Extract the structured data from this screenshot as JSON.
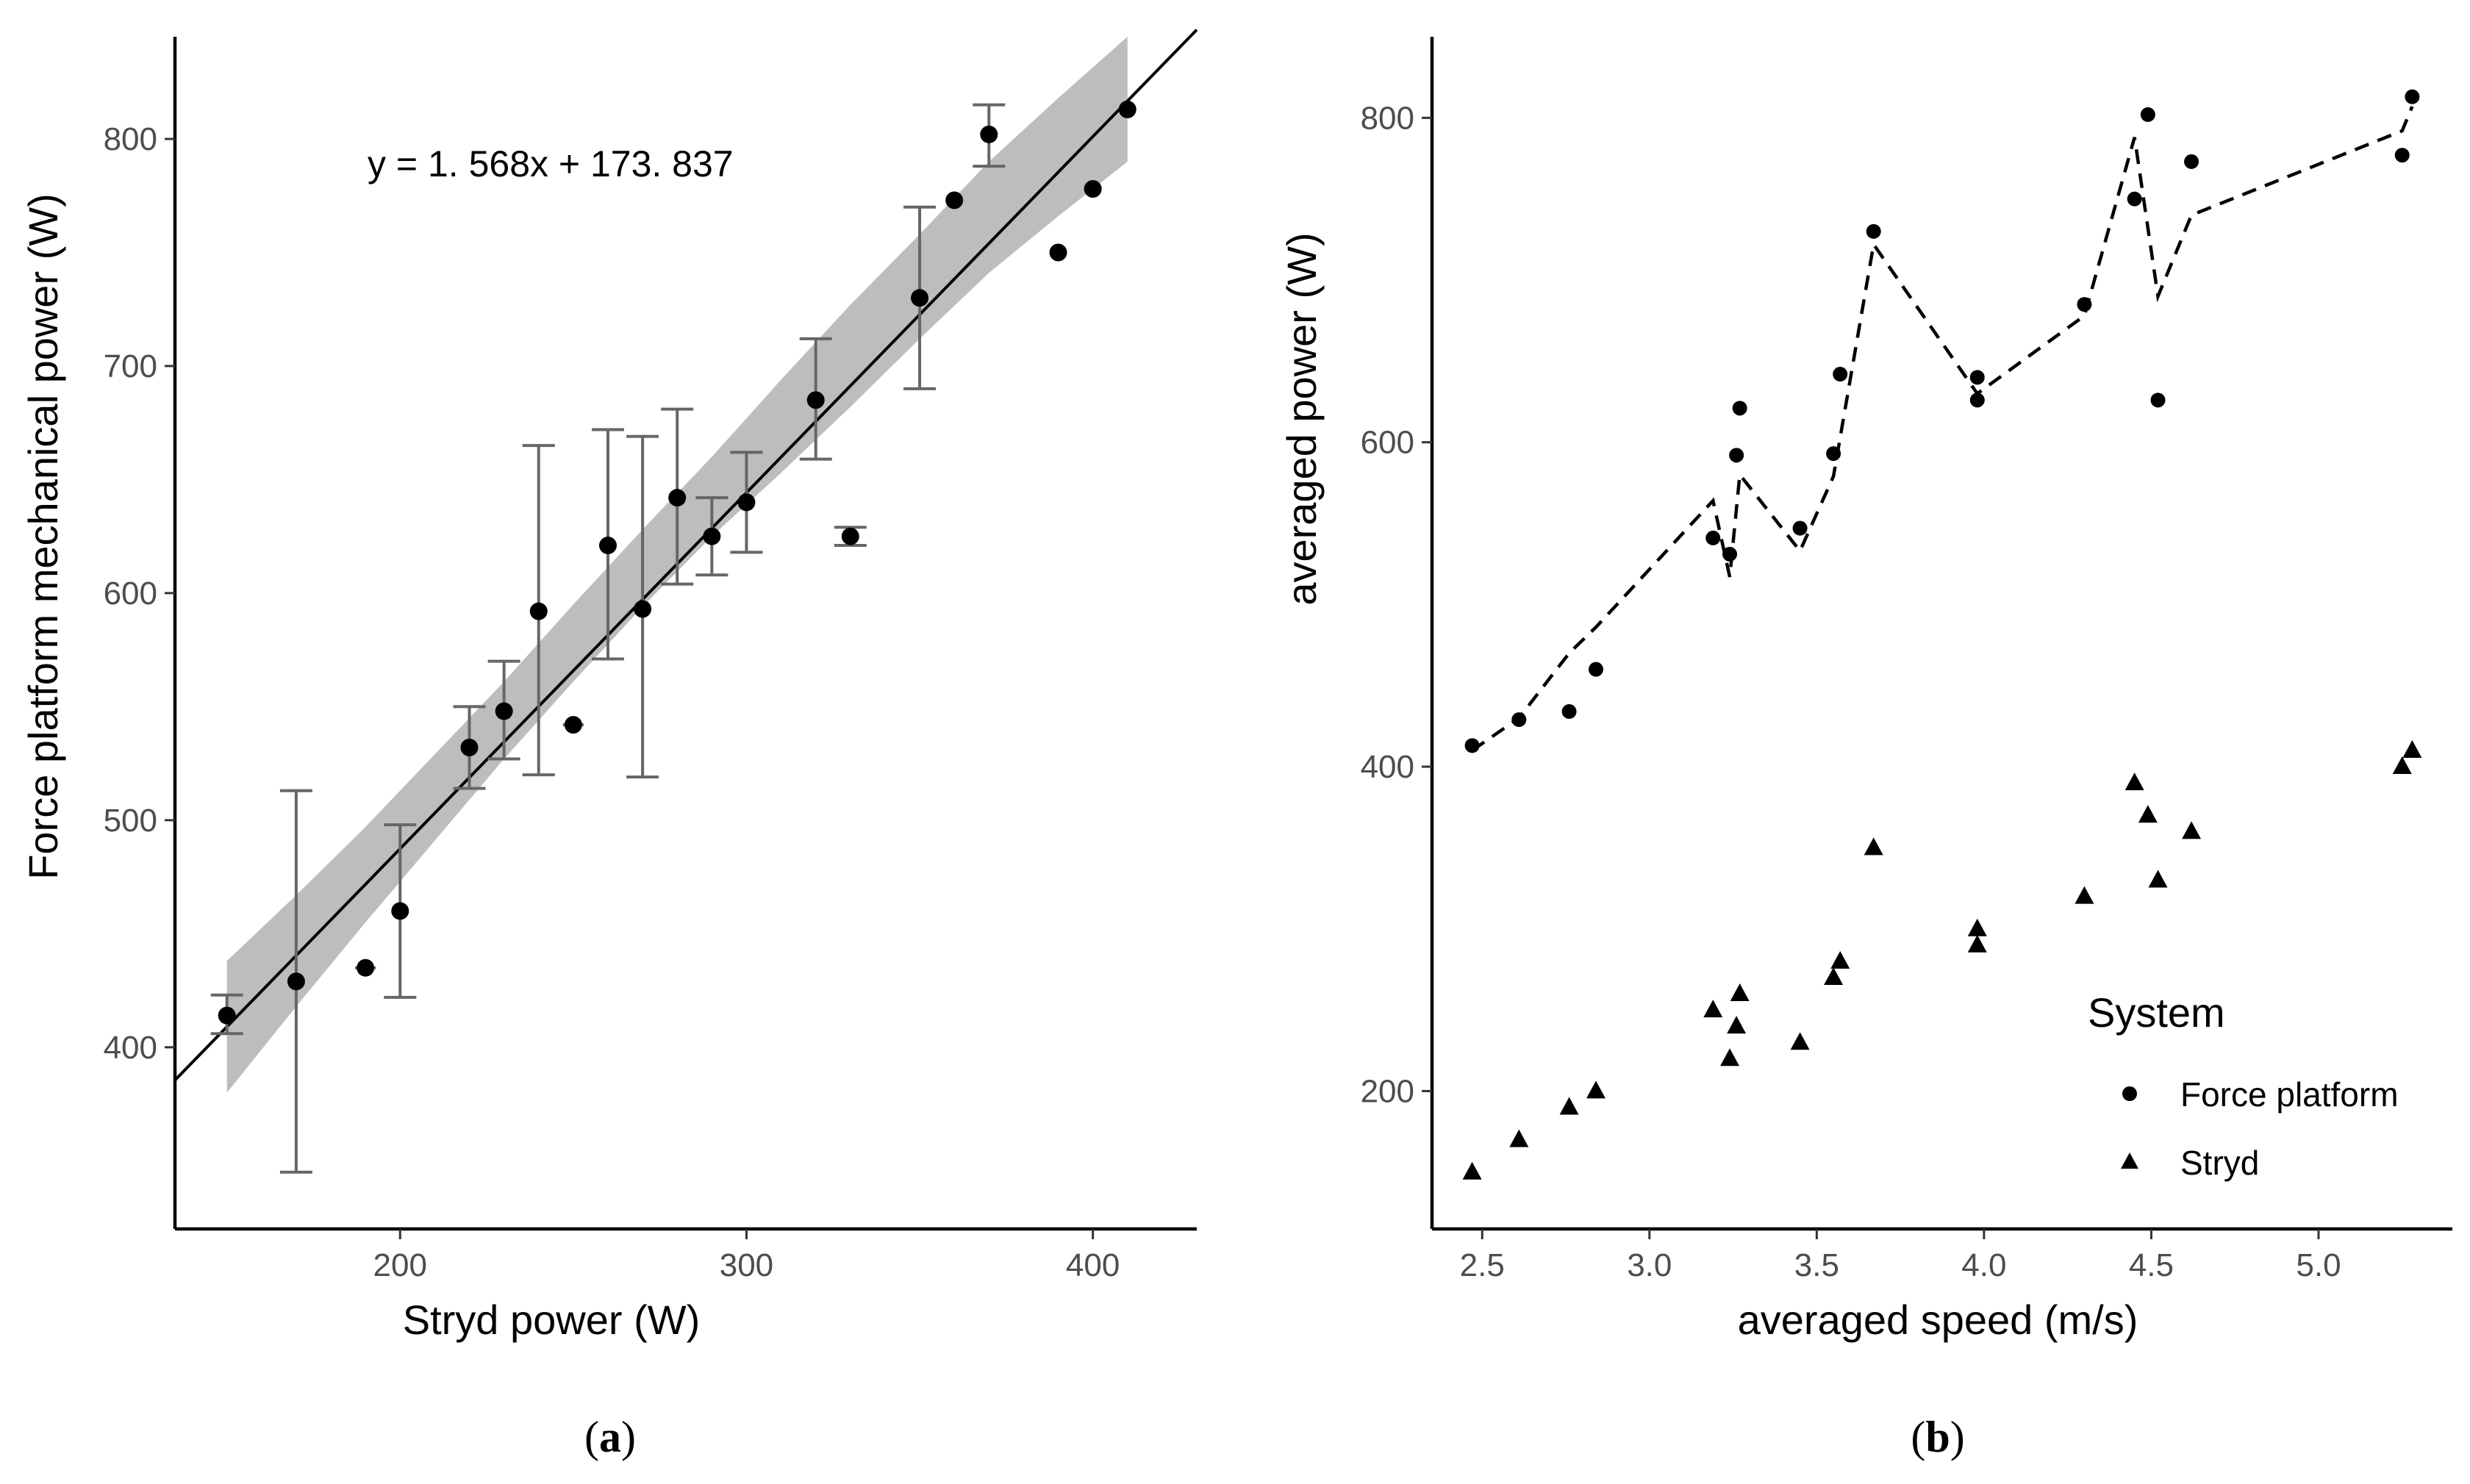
{
  "chart_data": [
    {
      "type": "scatter",
      "panel_label": "a",
      "xlabel": "Stryd power (W)",
      "ylabel": "Force platform mechanical power (W)",
      "xlim": [
        135,
        430
      ],
      "ylim": [
        320,
        845
      ],
      "xticks": [
        200,
        300,
        400
      ],
      "yticks": [
        400,
        500,
        600,
        700,
        800
      ],
      "equation": "y = 1. 568x + 173. 837",
      "regression": {
        "slope": 1.568,
        "intercept": 173.837,
        "x_range": [
          135,
          430
        ]
      },
      "confidence_band": {
        "x": [
          150,
          170,
          190,
          210,
          230,
          250,
          270,
          290,
          310,
          330,
          350,
          370,
          390,
          410
        ],
        "lower": [
          380,
          418,
          455,
          491,
          527,
          561,
          594,
          625,
          653,
          682,
          712,
          741,
          766,
          790
        ],
        "upper": [
          438,
          467,
          497,
          529,
          561,
          595,
          628,
          660,
          694,
          727,
          758,
          790,
          818,
          845
        ]
      },
      "points": [
        {
          "x": 150,
          "y": 414,
          "err": [
            406,
            423
          ]
        },
        {
          "x": 170,
          "y": 429,
          "err": [
            345,
            513
          ]
        },
        {
          "x": 190,
          "y": 435,
          "errx": [
            187,
            193
          ]
        },
        {
          "x": 200,
          "y": 460,
          "err": [
            422,
            498
          ]
        },
        {
          "x": 220,
          "y": 532,
          "err": [
            514,
            550
          ]
        },
        {
          "x": 230,
          "y": 548,
          "err": [
            527,
            570
          ]
        },
        {
          "x": 240,
          "y": 592,
          "err": [
            520,
            665
          ]
        },
        {
          "x": 250,
          "y": 542,
          "errx": [
            247,
            253
          ]
        },
        {
          "x": 260,
          "y": 621,
          "err": [
            571,
            672
          ]
        },
        {
          "x": 270,
          "y": 593,
          "err": [
            519,
            669
          ]
        },
        {
          "x": 280,
          "y": 642,
          "err": [
            604,
            681
          ]
        },
        {
          "x": 290,
          "y": 625,
          "err": [
            608,
            642
          ]
        },
        {
          "x": 300,
          "y": 640,
          "err": [
            618,
            662
          ]
        },
        {
          "x": 320,
          "y": 685,
          "err": [
            659,
            712
          ]
        },
        {
          "x": 330,
          "y": 625,
          "err": [
            621,
            629
          ]
        },
        {
          "x": 350,
          "y": 730,
          "err": [
            690,
            770
          ]
        },
        {
          "x": 360,
          "y": 773
        },
        {
          "x": 370,
          "y": 802,
          "err": [
            788,
            815
          ]
        },
        {
          "x": 390,
          "y": 750
        },
        {
          "x": 400,
          "y": 778
        },
        {
          "x": 410,
          "y": 813
        }
      ]
    },
    {
      "type": "scatter",
      "panel_label": "b",
      "xlabel": "averaged speed (m/s)",
      "ylabel": "averaged power (W)",
      "xlim": [
        2.35,
        5.4
      ],
      "ylim": [
        115,
        850
      ],
      "xticks": [
        2.5,
        3.0,
        3.5,
        4.0,
        4.5,
        5.0
      ],
      "xtick_labels": [
        "2.5",
        "3.0",
        "3.5",
        "4.0",
        "4.5",
        "5.0"
      ],
      "yticks": [
        200,
        400,
        600,
        800
      ],
      "legend": {
        "title": "System",
        "position": "right",
        "entries": [
          "Force platform",
          "Stryd"
        ]
      },
      "series": [
        {
          "name": "Force platform",
          "marker": "circle",
          "points": [
            [
              2.47,
              413
            ],
            [
              2.61,
              429
            ],
            [
              2.76,
              434
            ],
            [
              2.84,
              460
            ],
            [
              3.19,
              541
            ],
            [
              3.24,
              531
            ],
            [
              3.26,
              592
            ],
            [
              3.27,
              621
            ],
            [
              3.45,
              547
            ],
            [
              3.55,
              593
            ],
            [
              3.57,
              642
            ],
            [
              3.67,
              730
            ],
            [
              3.98,
              640
            ],
            [
              3.98,
              626
            ],
            [
              4.3,
              685
            ],
            [
              4.45,
              750
            ],
            [
              4.49,
              802
            ],
            [
              4.52,
              626
            ],
            [
              4.62,
              773
            ],
            [
              5.25,
              777
            ],
            [
              5.28,
              813
            ]
          ]
        },
        {
          "name": "Stryd",
          "marker": "triangle",
          "points": [
            [
              2.47,
              150
            ],
            [
              2.61,
              170
            ],
            [
              2.76,
              190
            ],
            [
              2.84,
              200
            ],
            [
              3.19,
              250
            ],
            [
              3.24,
              220
            ],
            [
              3.26,
              240
            ],
            [
              3.27,
              260
            ],
            [
              3.45,
              230
            ],
            [
              3.55,
              270
            ],
            [
              3.57,
              280
            ],
            [
              3.67,
              350
            ],
            [
              3.98,
              300
            ],
            [
              3.98,
              290
            ],
            [
              4.3,
              320
            ],
            [
              4.45,
              390
            ],
            [
              4.49,
              370
            ],
            [
              4.52,
              330
            ],
            [
              4.62,
              360
            ],
            [
              5.25,
              400
            ],
            [
              5.28,
              410
            ]
          ]
        }
      ],
      "fit_line": {
        "style": "dashed",
        "points": [
          [
            2.47,
            410
          ],
          [
            2.61,
            430
          ],
          [
            2.76,
            470
          ],
          [
            2.84,
            486
          ],
          [
            3.19,
            564
          ],
          [
            3.24,
            517
          ],
          [
            3.27,
            580
          ],
          [
            3.45,
            533
          ],
          [
            3.55,
            579
          ],
          [
            3.67,
            722
          ],
          [
            3.98,
            630
          ],
          [
            4.3,
            678
          ],
          [
            4.45,
            788
          ],
          [
            4.52,
            690
          ],
          [
            4.62,
            740
          ],
          [
            5.25,
            792
          ],
          [
            5.28,
            807
          ]
        ]
      }
    }
  ]
}
